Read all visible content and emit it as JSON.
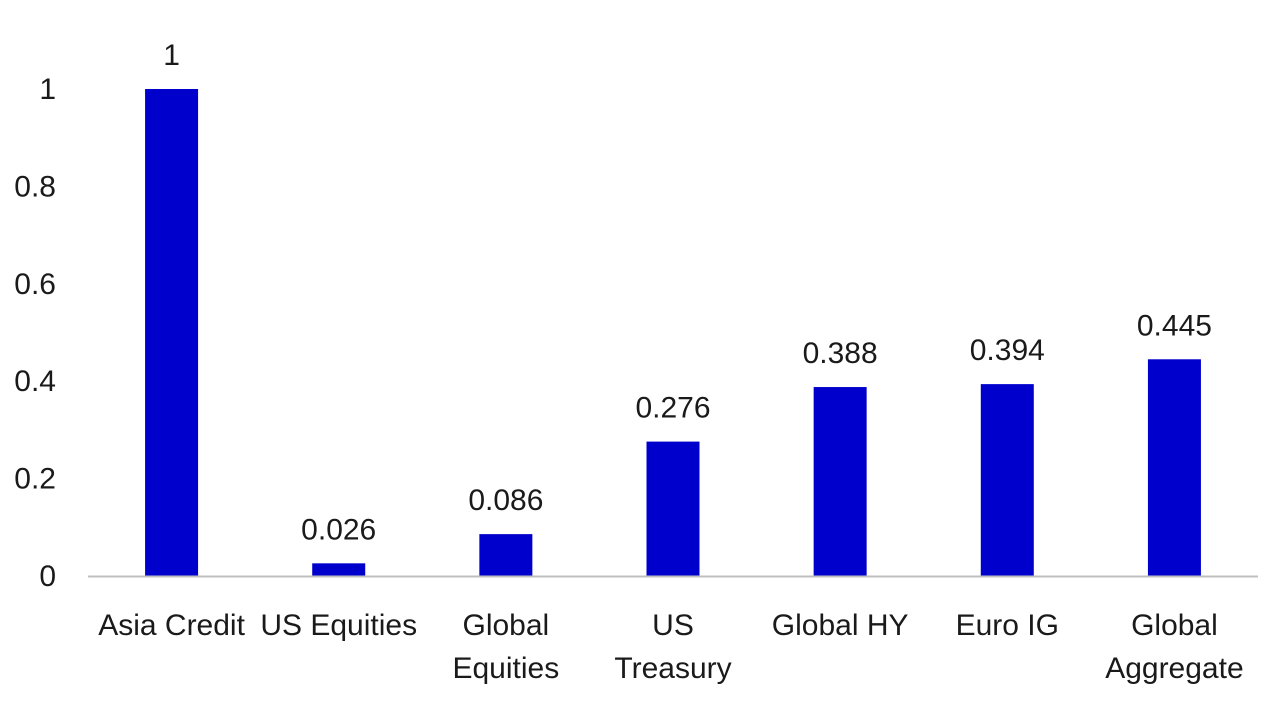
{
  "chart_data": {
    "type": "bar",
    "title": "",
    "xlabel": "",
    "ylabel": "",
    "categories": [
      [
        "Asia Credit"
      ],
      [
        "US Equities"
      ],
      [
        "Global",
        "Equities"
      ],
      [
        "US",
        "Treasury"
      ],
      [
        "Global HY"
      ],
      [
        "Euro IG"
      ],
      [
        "Global",
        "Aggregate"
      ]
    ],
    "values": [
      1,
      0.026,
      0.086,
      0.276,
      0.388,
      0.394,
      0.445
    ],
    "data_labels": [
      "1",
      "0.026",
      "0.086",
      "0.276",
      "0.388",
      "0.394",
      "0.445"
    ],
    "ylim": [
      0,
      1
    ],
    "yticks": [
      0,
      0.2,
      0.4,
      0.6,
      0.8,
      1
    ],
    "ytick_labels": [
      "0",
      "0.2",
      "0.4",
      "0.6",
      "0.8",
      "1"
    ],
    "grid": false,
    "legend": "none",
    "bar_color": "#0000CC",
    "axis_color": "#BFBFBF"
  }
}
